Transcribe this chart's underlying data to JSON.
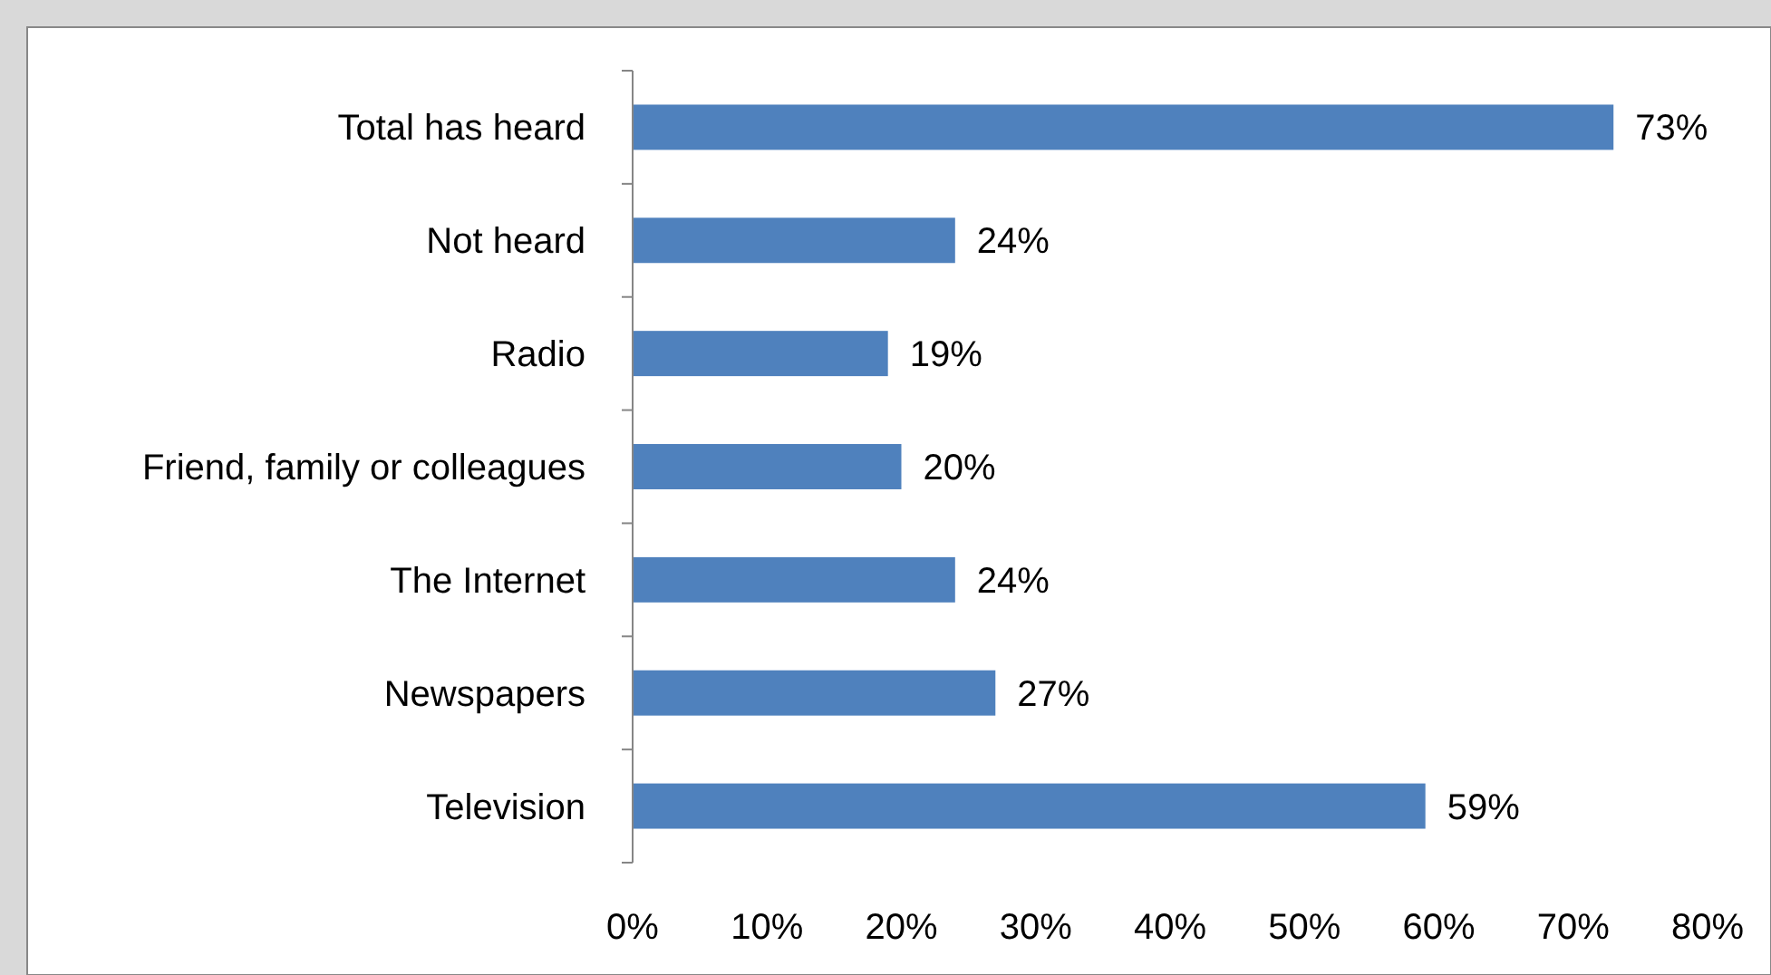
{
  "chart_data": {
    "type": "bar",
    "orientation": "horizontal",
    "categories": [
      "Total has heard",
      "Not heard",
      "Radio",
      "Friend, family or colleagues",
      "The Internet",
      "Newspapers",
      "Television"
    ],
    "values": [
      73,
      24,
      19,
      20,
      24,
      27,
      59
    ],
    "value_labels": [
      "73%",
      "24%",
      "19%",
      "20%",
      "24%",
      "27%",
      "59%"
    ],
    "color": "#4f81bd",
    "xlim": [
      0,
      80
    ],
    "xticks": [
      {
        "value": 0,
        "label": "0%"
      },
      {
        "value": 10,
        "label": "10%"
      },
      {
        "value": 20,
        "label": "20%"
      },
      {
        "value": 30,
        "label": "30%"
      },
      {
        "value": 40,
        "label": "40%"
      },
      {
        "value": 50,
        "label": "50%"
      },
      {
        "value": 60,
        "label": "60%"
      },
      {
        "value": 70,
        "label": "70%"
      },
      {
        "value": 80,
        "label": "80%"
      }
    ]
  }
}
